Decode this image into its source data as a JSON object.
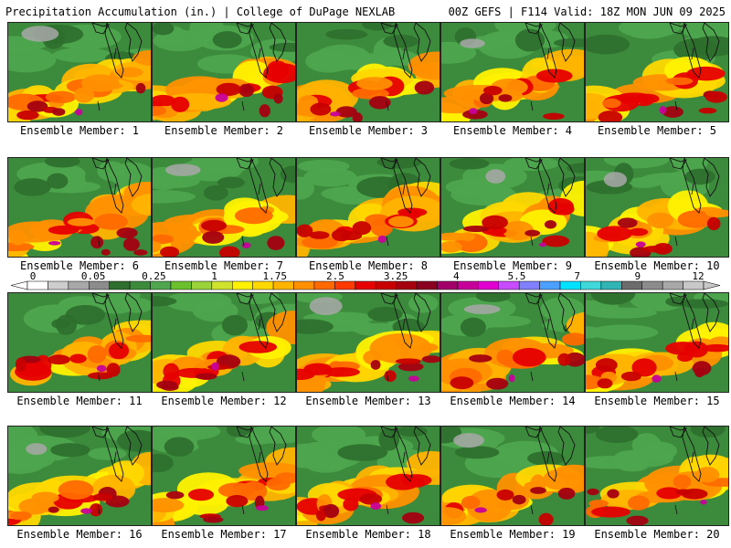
{
  "header": {
    "left": "Precipitation Accumulation (in.) | College of DuPage NEXLAB",
    "right": "00Z GEFS | F114 Valid: 18Z MON JUN 09 2025"
  },
  "colorbar": {
    "labels": [
      "0",
      "0.05",
      "0.25",
      "1",
      "1.75",
      "2.5",
      "3.25",
      "4",
      "5.5",
      "7",
      "9",
      "12"
    ],
    "colors": [
      "#ffffff",
      "#cdcdcd",
      "#a8a8a8",
      "#8c8c8c",
      "#2e6e2e",
      "#3c8a3c",
      "#4ea64e",
      "#6cc02c",
      "#9ad23a",
      "#cfe22e",
      "#fff200",
      "#ffd800",
      "#ffb400",
      "#ff9000",
      "#ff6a00",
      "#ff3a00",
      "#e60000",
      "#c80000",
      "#a40010",
      "#8a0020",
      "#a4006a",
      "#c8009a",
      "#e000d0",
      "#c84cff",
      "#8080ff",
      "#4ca0ff",
      "#00e0ff",
      "#40d8d8",
      "#30b4b4",
      "#6c6c6c",
      "#8c8c8c",
      "#a8a8a8",
      "#c8c8c8"
    ]
  },
  "members": [
    {
      "label": "Ensemble Member: 1"
    },
    {
      "label": "Ensemble Member: 2"
    },
    {
      "label": "Ensemble Member: 3"
    },
    {
      "label": "Ensemble Member: 4"
    },
    {
      "label": "Ensemble Member: 5"
    },
    {
      "label": "Ensemble Member: 6"
    },
    {
      "label": "Ensemble Member: 7"
    },
    {
      "label": "Ensemble Member: 8"
    },
    {
      "label": "Ensemble Member: 9"
    },
    {
      "label": "Ensemble Member: 10"
    },
    {
      "label": "Ensemble Member: 11"
    },
    {
      "label": "Ensemble Member: 12"
    },
    {
      "label": "Ensemble Member: 13"
    },
    {
      "label": "Ensemble Member: 14"
    },
    {
      "label": "Ensemble Member: 15"
    },
    {
      "label": "Ensemble Member: 16"
    },
    {
      "label": "Ensemble Member: 17"
    },
    {
      "label": "Ensemble Member: 18"
    },
    {
      "label": "Ensemble Member: 19"
    },
    {
      "label": "Ensemble Member: 20"
    }
  ]
}
